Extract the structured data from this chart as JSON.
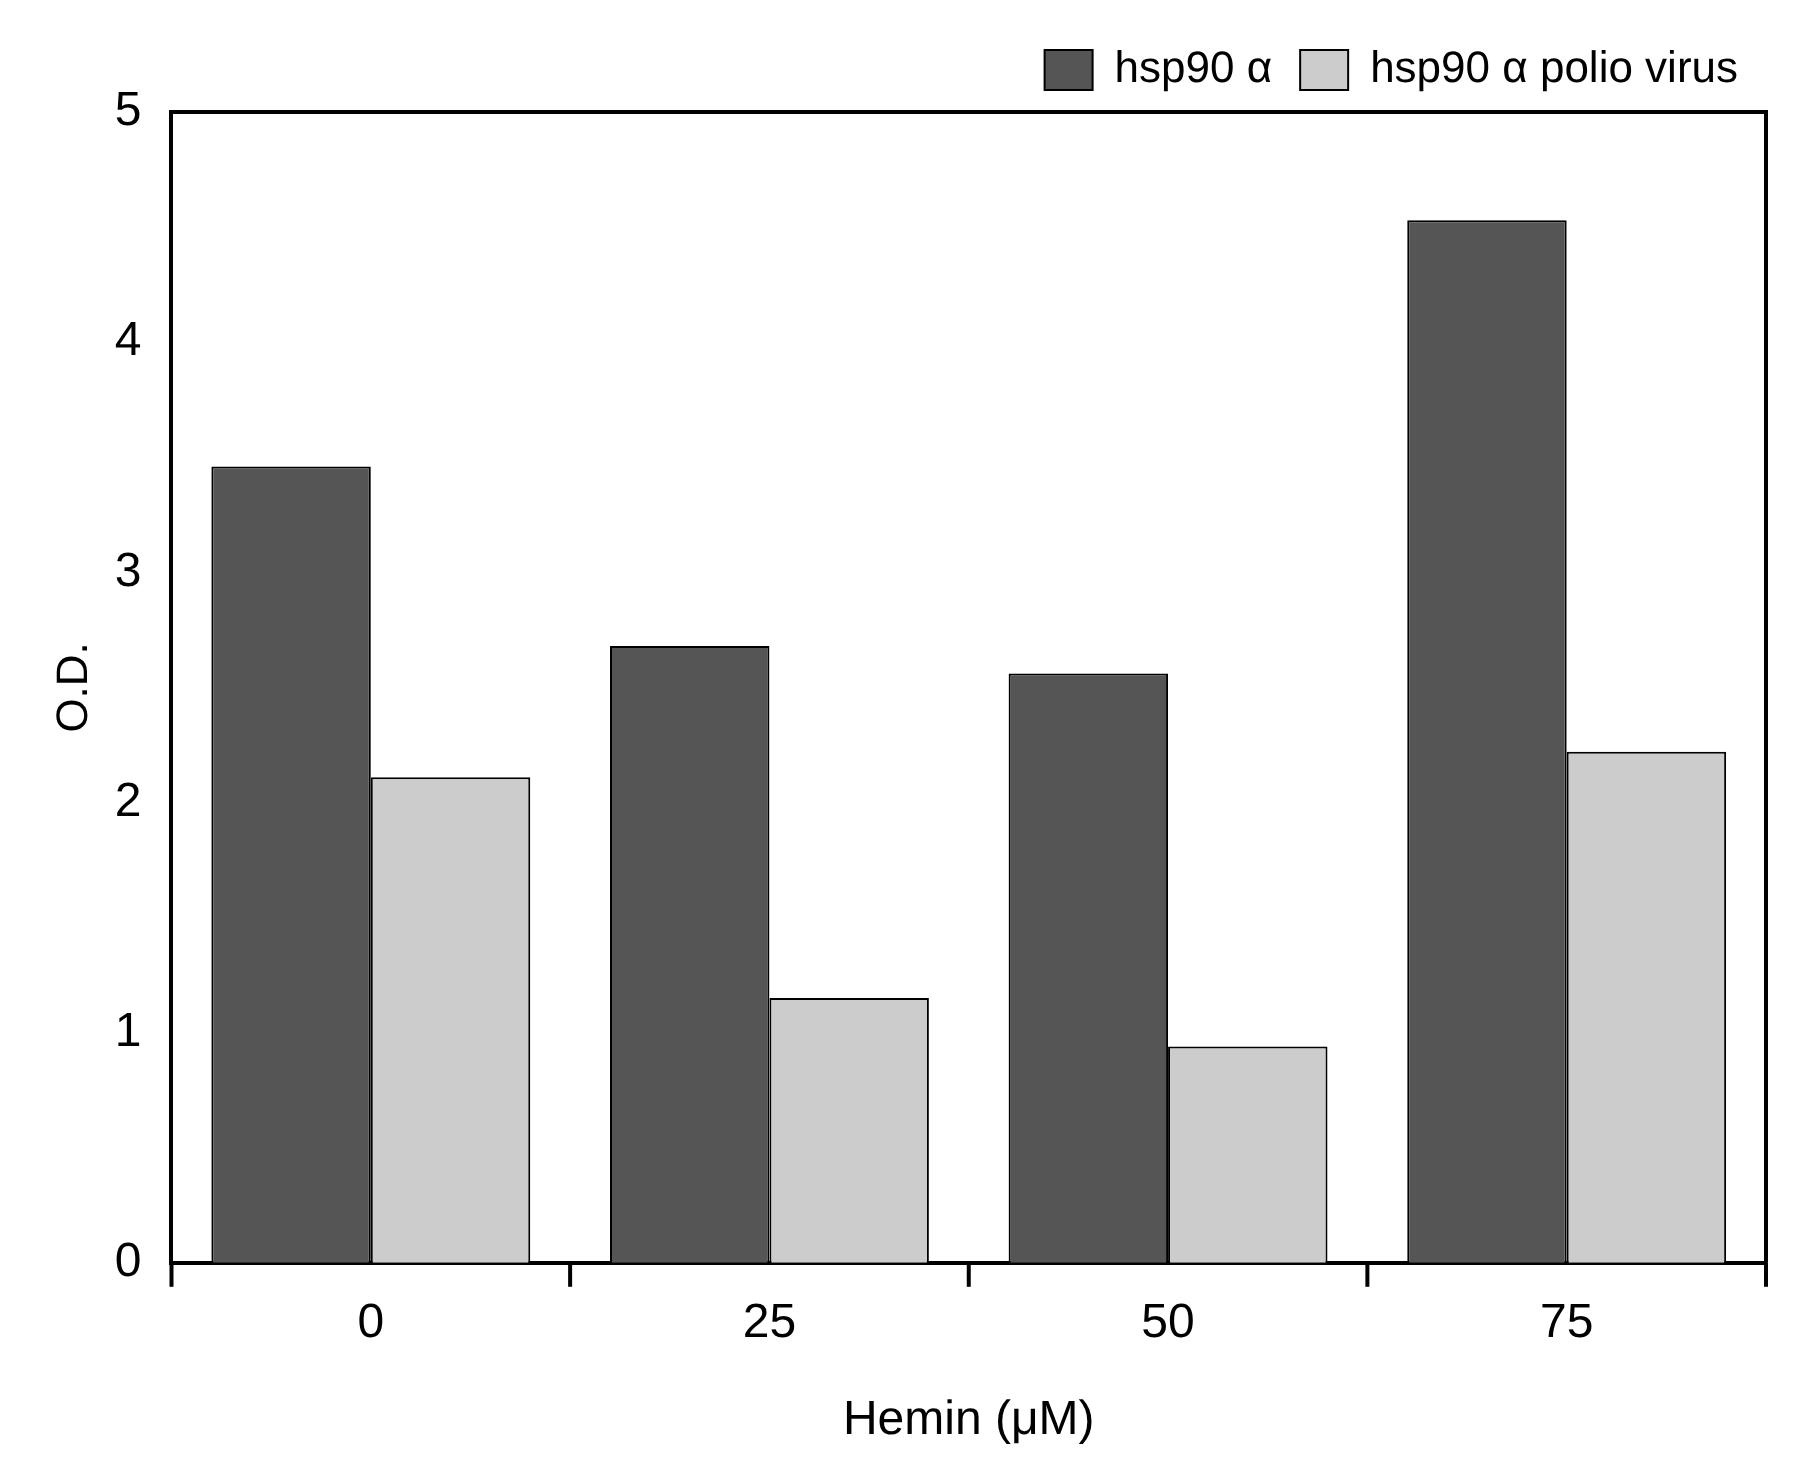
{
  "chart_data": {
    "type": "bar",
    "categories": [
      "0",
      "25",
      "50",
      "75"
    ],
    "series": [
      {
        "name": "hsp90 α",
        "color": "#555555",
        "values": [
          3.46,
          2.68,
          2.56,
          4.53
        ]
      },
      {
        "name": "hsp90 α polio virus",
        "color": "#cccccc",
        "values": [
          2.11,
          1.15,
          0.94,
          2.22
        ]
      }
    ],
    "xlabel": "Hemin (μM)",
    "ylabel": "O.D.",
    "ylim": [
      0,
      5
    ],
    "yticks": [
      0,
      1,
      2,
      3,
      4,
      5
    ],
    "grid": false,
    "legend": "top right"
  }
}
